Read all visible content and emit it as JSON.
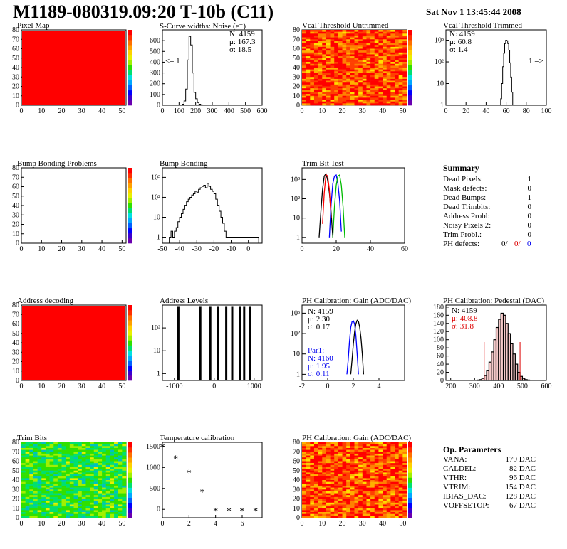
{
  "header": {
    "title": "M1189-080319.09:20 T-10b (C11)",
    "date": "Sat Nov  1 13:45:44 2008"
  },
  "palette": {
    "rainbow": [
      "#6a00b0",
      "#3a00d0",
      "#0000ff",
      "#0060ff",
      "#00a8ff",
      "#00e0e0",
      "#00e070",
      "#30e000",
      "#a0f000",
      "#e8f000",
      "#ffd000",
      "#ffa000",
      "#ff7000",
      "#ff3000",
      "#ff0000"
    ]
  },
  "panels": {
    "pixel_map": {
      "title": "Pixel Map",
      "scale_ticks": [
        "1",
        "2",
        "3",
        "4",
        "5",
        "6",
        "7",
        "8",
        "9",
        "10"
      ]
    },
    "noise": {
      "title": "S-Curve widths: Noise (e⁻)",
      "stats": {
        "n": "N: 4159",
        "mu": "μ: 167.3",
        "sigma": "σ: 18.5"
      },
      "underflow": "<= 1"
    },
    "vcal_untrimmed": {
      "title": "Vcal Threshold Untrimmed",
      "scale_ticks": [
        "20",
        "40",
        "60",
        "80",
        "100",
        "120"
      ]
    },
    "vcal_trimmed": {
      "title": "Vcal Threshold Trimmed",
      "stats": {
        "n": "N: 4159",
        "mu": "μ: 60.8",
        "sigma": "σ:  1.4"
      },
      "overflow": "1 =>"
    },
    "bump_problems": {
      "title": "Bump Bonding Problems",
      "scale_ticks": [
        "-5",
        "-4",
        "-3",
        "-2",
        "-1",
        "0",
        "1",
        "2",
        "3",
        "4",
        "5"
      ]
    },
    "bump_bonding": {
      "title": "Bump Bonding"
    },
    "trim_bit_test": {
      "title": "Trim Bit Test"
    },
    "summary": {
      "title": "Summary",
      "rows": [
        {
          "label": "Dead Pixels:",
          "value": "1"
        },
        {
          "label": "Mask defects:",
          "value": "0"
        },
        {
          "label": "Dead Bumps:",
          "value": "1"
        },
        {
          "label": "Dead Trimbits:",
          "value": "0"
        },
        {
          "label": "Address Probl:",
          "value": "0"
        },
        {
          "label": "Noisy Pixels 2:",
          "value": "0"
        },
        {
          "label": "Trim Probl.:",
          "value": "0"
        }
      ],
      "ph_label": "PH defects:",
      "ph_values": [
        "0/",
        "0/",
        "0"
      ]
    },
    "address_decoding": {
      "title": "Address decoding",
      "scale_ticks": [
        "0.1",
        "0.2",
        "0.3",
        "0.4",
        "0.5",
        "0.6",
        "0.7",
        "0.8",
        "0.9",
        "1"
      ]
    },
    "address_levels": {
      "title": "Address Levels"
    },
    "ph_gain": {
      "title": "PH Calibration: Gain (ADC/DAC)",
      "stats": {
        "n": "N: 4159",
        "mu": "μ: 2.30",
        "sigma": "σ: 0.17"
      },
      "par": {
        "label": "Par1:",
        "n": "N: 4160",
        "mu": "μ: 1.95",
        "sigma": "σ: 0.11"
      }
    },
    "ph_pedestal": {
      "title": "PH Calibration: Pedestal (DAC)",
      "stats": {
        "n": "N: 4159",
        "mu": "μ: 408.8",
        "sigma": "σ: 31.8"
      }
    },
    "trim_bits": {
      "title": "Trim Bits",
      "scale_ticks": [
        "2",
        "4",
        "6",
        "8",
        "10",
        "12",
        "14",
        "16"
      ]
    },
    "temperature": {
      "title": "Temperature calibration"
    },
    "ph_gain_map": {
      "title": "PH Calibration: Gain (ADC/DAC)",
      "scale_ticks": [
        "0.5",
        "1",
        "1.5",
        "2",
        "2.5"
      ]
    },
    "op_params": {
      "title": "Op. Parameters",
      "rows": [
        {
          "label": "VANA:",
          "value": "179 DAC"
        },
        {
          "label": "CALDEL:",
          "value": "82 DAC"
        },
        {
          "label": "VTHR:",
          "value": "96 DAC"
        },
        {
          "label": "VTRIM:",
          "value": "154 DAC"
        },
        {
          "label": "IBIAS_DAC:",
          "value": "128 DAC"
        },
        {
          "label": "VOFFSETOP:",
          "value": "67 DAC"
        }
      ]
    }
  },
  "chart_data": [
    {
      "type": "heatmap",
      "title": "Pixel Map",
      "x_ticks": [
        "0",
        "10",
        "20",
        "30",
        "40",
        "50"
      ],
      "y_ticks": [
        "0",
        "10",
        "20",
        "30",
        "40",
        "50",
        "60",
        "70",
        "80"
      ],
      "fill": "uniform",
      "fill_color": "#ff0000",
      "scale": [
        1,
        10
      ]
    },
    {
      "type": "bar",
      "title": "S-Curve widths: Noise (e⁻)",
      "x_ticks": [
        "0",
        "100",
        "200",
        "300",
        "400",
        "500",
        "600"
      ],
      "y_ticks": [
        "0",
        "100",
        "200",
        "300",
        "400",
        "500",
        "600"
      ],
      "xlim": [
        0,
        600
      ],
      "ylim": [
        0,
        700
      ],
      "x_centers": [
        115,
        125,
        135,
        145,
        155,
        165,
        175,
        185,
        195,
        205,
        215,
        225,
        235,
        245
      ],
      "values": [
        2,
        10,
        40,
        150,
        420,
        640,
        560,
        300,
        120,
        60,
        25,
        10,
        4,
        1
      ]
    },
    {
      "type": "heatmap",
      "title": "Vcal Threshold Untrimmed",
      "x_ticks": [
        "0",
        "10",
        "20",
        "30",
        "40",
        "50"
      ],
      "y_ticks": [
        "0",
        "10",
        "20",
        "30",
        "40",
        "50",
        "60",
        "70",
        "80"
      ],
      "fill": "noise",
      "scale": [
        0,
        130
      ]
    },
    {
      "type": "bar",
      "title": "Vcal Threshold Trimmed",
      "log": true,
      "x_ticks": [
        "0",
        "20",
        "40",
        "60",
        "80",
        "100"
      ],
      "y_ticks": [
        "1",
        "10",
        "10²",
        "10³"
      ],
      "xlim": [
        0,
        100
      ],
      "ylim": [
        1,
        3000
      ],
      "x_centers": [
        54,
        55,
        56,
        57,
        58,
        59,
        60,
        61,
        62,
        63,
        64,
        65,
        66,
        67
      ],
      "values": [
        1,
        2,
        10,
        60,
        250,
        700,
        1000,
        950,
        700,
        350,
        90,
        20,
        4,
        1
      ]
    },
    {
      "type": "heatmap",
      "title": "Bump Bonding Problems",
      "x_ticks": [
        "0",
        "10",
        "20",
        "30",
        "40",
        "50"
      ],
      "y_ticks": [
        "0",
        "10",
        "20",
        "30",
        "40",
        "50",
        "60",
        "70",
        "80"
      ],
      "fill": "empty",
      "scale": [
        -5,
        5
      ]
    },
    {
      "type": "bar",
      "title": "Bump Bonding",
      "log": true,
      "x_ticks": [
        "-50",
        "-40",
        "-30",
        "-20",
        "-10",
        "0"
      ],
      "y_ticks": [
        "1",
        "10",
        "10²",
        "10³"
      ],
      "xlim": [
        -50,
        8
      ],
      "ylim": [
        0.5,
        3000
      ],
      "x_centers": [
        -45.5,
        -44.5,
        -43.5,
        -42.5,
        -41.5,
        -40.5,
        -39.5,
        -38.5,
        -37.5,
        -36.5,
        -35.5,
        -34.5,
        -33.5,
        -32.5,
        -31.5,
        -30.5,
        -29.5,
        -28.5,
        -27.5,
        -26.5,
        -25.5,
        -24.5,
        -23.5,
        -22.5,
        -21.5,
        -20.5,
        -19.5,
        -18.5,
        -17.5,
        -16.5,
        -15.5,
        -14.5,
        -13.5,
        -12.5,
        -11.5,
        -10.5,
        -1.5,
        -0.5,
        5.5
      ],
      "values": [
        1,
        2,
        1,
        2,
        3,
        6,
        10,
        15,
        25,
        40,
        60,
        80,
        100,
        130,
        150,
        200,
        180,
        250,
        300,
        350,
        400,
        300,
        500,
        350,
        250,
        200,
        150,
        80,
        40,
        20,
        10,
        5,
        2,
        1,
        1,
        1,
        1,
        1,
        1
      ]
    },
    {
      "type": "line",
      "title": "Trim Bit Test",
      "log": true,
      "x_ticks": [
        "0",
        "20",
        "40",
        "60"
      ],
      "y_ticks": [
        "1",
        "10",
        "10²",
        "10³"
      ],
      "xlim": [
        0,
        60
      ],
      "ylim": [
        0.5,
        4000
      ],
      "series": [
        {
          "color": "#000000",
          "x": [
            10,
            11,
            12,
            13,
            14,
            15,
            16,
            17,
            18
          ],
          "values": [
            1,
            20,
            300,
            1500,
            2000,
            900,
            200,
            20,
            1
          ]
        },
        {
          "color": "#ff0000",
          "x": [
            12,
            13,
            14,
            15,
            16,
            17
          ],
          "values": [
            5,
            200,
            1800,
            1500,
            300,
            10
          ]
        },
        {
          "color": "#0000ff",
          "x": [
            16,
            17,
            18,
            19,
            20,
            21,
            22,
            23
          ],
          "values": [
            1,
            50,
            600,
            1500,
            1700,
            600,
            80,
            2
          ]
        },
        {
          "color": "#00bb00",
          "x": [
            18,
            19,
            20,
            21,
            22,
            23,
            24,
            25
          ],
          "values": [
            1,
            40,
            500,
            1500,
            1700,
            500,
            40,
            1
          ]
        }
      ]
    },
    {
      "type": "heatmap",
      "title": "Address decoding",
      "x_ticks": [
        "0",
        "10",
        "20",
        "30",
        "40",
        "50"
      ],
      "y_ticks": [
        "0",
        "10",
        "20",
        "30",
        "40",
        "50",
        "60",
        "70",
        "80"
      ],
      "fill": "uniform",
      "fill_color": "#ff0000",
      "scale": [
        0,
        1
      ]
    },
    {
      "type": "bar",
      "title": "Address Levels",
      "log": true,
      "x_ticks": [
        "-1000",
        "0",
        "1000"
      ],
      "y_ticks": [
        "1",
        "10",
        "10²"
      ],
      "xlim": [
        -1300,
        1200
      ],
      "ylim": [
        0.5,
        1000
      ],
      "x_centers": [
        -900,
        -350,
        -100,
        100,
        300,
        450,
        650,
        750,
        900
      ],
      "values": [
        900,
        900,
        900,
        900,
        900,
        900,
        900,
        900,
        900
      ]
    },
    {
      "type": "line",
      "title": "PH Calibration: Gain (ADC/DAC)",
      "log": true,
      "x_ticks": [
        "-2",
        "0",
        "2",
        "4"
      ],
      "y_ticks": [
        "1",
        "10",
        "10²",
        "10³"
      ],
      "xlim": [
        -2,
        6
      ],
      "ylim": [
        0.5,
        2500
      ],
      "series": [
        {
          "color": "#000000",
          "x": [
            1.8,
            1.9,
            2.0,
            2.1,
            2.2,
            2.3,
            2.4,
            2.5,
            2.6,
            2.7,
            2.8
          ],
          "values": [
            1,
            5,
            30,
            120,
            300,
            450,
            400,
            200,
            60,
            10,
            1
          ]
        },
        {
          "color": "#0000ff",
          "x": [
            1.5,
            1.6,
            1.7,
            1.8,
            1.9,
            2.0,
            2.1,
            2.2,
            2.3,
            2.4
          ],
          "values": [
            1,
            5,
            40,
            200,
            380,
            420,
            300,
            80,
            10,
            1
          ]
        }
      ]
    },
    {
      "type": "bar",
      "title": "PH Calibration: Pedestal (DAC)",
      "x_ticks": [
        "200",
        "300",
        "400",
        "500",
        "600"
      ],
      "y_ticks": [
        "0",
        "20",
        "40",
        "60",
        "80",
        "100",
        "120",
        "140",
        "160",
        "180"
      ],
      "xlim": [
        180,
        600
      ],
      "ylim": [
        0,
        185
      ],
      "x_centers": [
        315,
        325,
        335,
        345,
        355,
        365,
        375,
        385,
        395,
        405,
        415,
        425,
        435,
        445,
        455,
        465,
        475,
        485,
        495,
        505,
        515,
        525
      ],
      "values": [
        1,
        2,
        5,
        12,
        25,
        45,
        70,
        100,
        130,
        150,
        165,
        160,
        140,
        115,
        90,
        65,
        40,
        20,
        10,
        5,
        2,
        1
      ],
      "markers": [
        340,
        490
      ]
    },
    {
      "type": "heatmap",
      "title": "Trim Bits",
      "x_ticks": [
        "0",
        "10",
        "20",
        "30",
        "40",
        "50"
      ],
      "y_ticks": [
        "0",
        "10",
        "20",
        "30",
        "40",
        "50",
        "60",
        "70",
        "80"
      ],
      "fill": "noise-green",
      "scale": [
        0,
        16
      ]
    },
    {
      "type": "scatter",
      "title": "Temperature calibration",
      "x_ticks": [
        "0",
        "2",
        "4",
        "6"
      ],
      "y_ticks": [
        "0",
        "500",
        "1000",
        "1500"
      ],
      "xlim": [
        0,
        7.5
      ],
      "ylim": [
        -200,
        1600
      ],
      "x": [
        0,
        1,
        2,
        3,
        4,
        5,
        6,
        7
      ],
      "values": [
        1500,
        1220,
        880,
        420,
        -30,
        -30,
        -30,
        -30
      ]
    },
    {
      "type": "heatmap",
      "title": "PH Calibration: Gain (ADC/DAC)",
      "x_ticks": [
        "0",
        "10",
        "20",
        "30",
        "40",
        "50"
      ],
      "y_ticks": [
        "0",
        "10",
        "20",
        "30",
        "40",
        "50",
        "60",
        "70",
        "80"
      ],
      "fill": "noise",
      "scale": [
        0,
        2.7
      ]
    }
  ]
}
